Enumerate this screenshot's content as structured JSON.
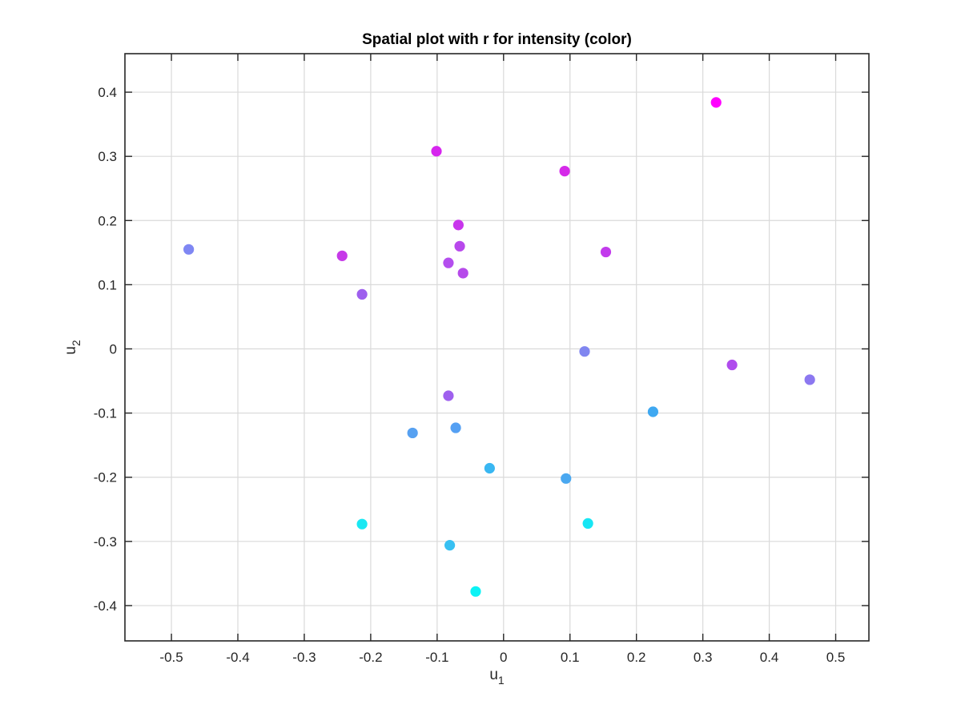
{
  "chart_data": {
    "type": "scatter",
    "title": "Spatial plot with r for intensity (color)",
    "xlabel": {
      "base": "u",
      "subscript": "1"
    },
    "ylabel": {
      "base": "u",
      "subscript": "2"
    },
    "xlim": [
      -0.57,
      0.55
    ],
    "ylim": [
      -0.455,
      0.46
    ],
    "xticks": [
      -0.5,
      -0.4,
      -0.3,
      -0.2,
      -0.1,
      0,
      0.1,
      0.2,
      0.3,
      0.4,
      0.5
    ],
    "xtick_labels": [
      "-0.5",
      "-0.4",
      "-0.3",
      "-0.2",
      "-0.1",
      "0",
      "0.1",
      "0.2",
      "0.3",
      "0.4",
      "0.5"
    ],
    "yticks": [
      -0.4,
      -0.3,
      -0.2,
      -0.1,
      0,
      0.1,
      0.2,
      0.3,
      0.4
    ],
    "ytick_labels": [
      "-0.4",
      "-0.3",
      "-0.2",
      "-0.1",
      "0",
      "0.1",
      "0.2",
      "0.3",
      "0.4"
    ],
    "grid": true,
    "colormap": "cool (cyan to magenta)",
    "points": [
      {
        "x": 0.32,
        "y": 0.384,
        "color": "#ff00ff"
      },
      {
        "x": -0.101,
        "y": 0.308,
        "color": "#d625ee"
      },
      {
        "x": 0.092,
        "y": 0.277,
        "color": "#d52ae9"
      },
      {
        "x": -0.068,
        "y": 0.193,
        "color": "#c835ec"
      },
      {
        "x": -0.474,
        "y": 0.155,
        "color": "#7f87f3"
      },
      {
        "x": -0.066,
        "y": 0.16,
        "color": "#b848ec"
      },
      {
        "x": 0.154,
        "y": 0.151,
        "color": "#c23bec"
      },
      {
        "x": -0.243,
        "y": 0.145,
        "color": "#c63ae8"
      },
      {
        "x": -0.083,
        "y": 0.134,
        "color": "#b44eee"
      },
      {
        "x": -0.061,
        "y": 0.118,
        "color": "#b64aea"
      },
      {
        "x": -0.213,
        "y": 0.085,
        "color": "#9e5fee"
      },
      {
        "x": 0.122,
        "y": -0.004,
        "color": "#8086f0"
      },
      {
        "x": 0.344,
        "y": -0.025,
        "color": "#b04ced"
      },
      {
        "x": 0.461,
        "y": -0.048,
        "color": "#8c78f0"
      },
      {
        "x": -0.083,
        "y": -0.073,
        "color": "#9f60ee"
      },
      {
        "x": 0.225,
        "y": -0.098,
        "color": "#3fa8f1"
      },
      {
        "x": -0.072,
        "y": -0.123,
        "color": "#55a0f3"
      },
      {
        "x": -0.137,
        "y": -0.131,
        "color": "#57a1f1"
      },
      {
        "x": -0.021,
        "y": -0.186,
        "color": "#39b7f2"
      },
      {
        "x": 0.094,
        "y": -0.202,
        "color": "#4aa8f0"
      },
      {
        "x": -0.213,
        "y": -0.273,
        "color": "#19e8f3"
      },
      {
        "x": 0.127,
        "y": -0.272,
        "color": "#17e6f4"
      },
      {
        "x": -0.081,
        "y": -0.306,
        "color": "#38c0f2"
      },
      {
        "x": -0.042,
        "y": -0.378,
        "color": "#0cf3f5"
      }
    ]
  }
}
